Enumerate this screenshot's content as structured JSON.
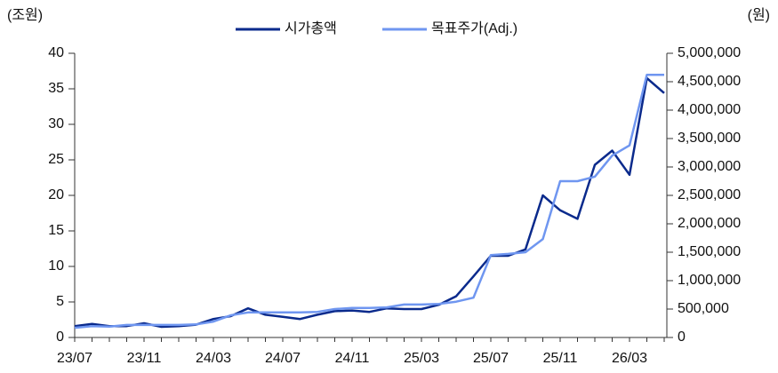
{
  "chart_data": {
    "type": "line",
    "y_label": "(조원)",
    "y2_label": "(원)",
    "categories": [
      "23/07",
      null,
      null,
      null,
      "23/11",
      null,
      null,
      null,
      "24/03",
      null,
      null,
      null,
      "24/07",
      null,
      null,
      null,
      "24/11",
      null,
      null,
      null,
      "25/03",
      null,
      null,
      null,
      "25/07",
      null,
      null,
      null,
      "25/11",
      null,
      null,
      null,
      "26/03",
      null,
      null
    ],
    "series": [
      {
        "name": "시가총액",
        "color": "#0a2a8c",
        "axis": "y",
        "values": [
          1.6,
          1.9,
          1.6,
          1.6,
          2.0,
          1.5,
          1.6,
          1.8,
          2.6,
          3.0,
          4.1,
          3.2,
          2.9,
          2.6,
          3.2,
          3.7,
          3.8,
          3.6,
          4.1,
          4.0,
          4.0,
          4.6,
          5.8,
          8.6,
          11.5,
          11.5,
          12.4,
          20.0,
          17.9,
          16.7,
          24.3,
          26.3,
          22.9,
          36.5,
          34.4
        ]
      },
      {
        "name": "목표주가(Adj.)",
        "color": "#6f96f0",
        "axis": "y2",
        "values": [
          170000,
          200000,
          190000,
          220000,
          220000,
          220000,
          220000,
          230000,
          280000,
          390000,
          440000,
          440000,
          440000,
          440000,
          450000,
          500000,
          520000,
          520000,
          530000,
          580000,
          580000,
          590000,
          630000,
          700000,
          1450000,
          1470000,
          1500000,
          1730000,
          2750000,
          2750000,
          2830000,
          3200000,
          3380000,
          4620000,
          4620000
        ]
      }
    ],
    "ylim": [
      0,
      40
    ],
    "yticks": [
      0,
      5,
      10,
      15,
      20,
      25,
      30,
      35,
      40
    ],
    "y2lim": [
      0,
      5000000
    ],
    "y2ticks": [
      0,
      {
        "value": 500000,
        "label": "500,000"
      },
      {
        "value": 1000000,
        "label": "1,000,000"
      },
      {
        "value": 1500000,
        "label": "1,500,000"
      },
      {
        "value": 2000000,
        "label": "2,000,000"
      },
      {
        "value": 2500000,
        "label": "2,500,000"
      },
      {
        "value": 3000000,
        "label": "3,000,000"
      },
      {
        "value": 3500000,
        "label": "3,500,000"
      },
      {
        "value": 4000000,
        "label": "4,000,000"
      },
      {
        "value": 4500000,
        "label": "4,500,000"
      },
      {
        "value": 5000000,
        "label": "5,000,000"
      }
    ],
    "grid": false
  }
}
